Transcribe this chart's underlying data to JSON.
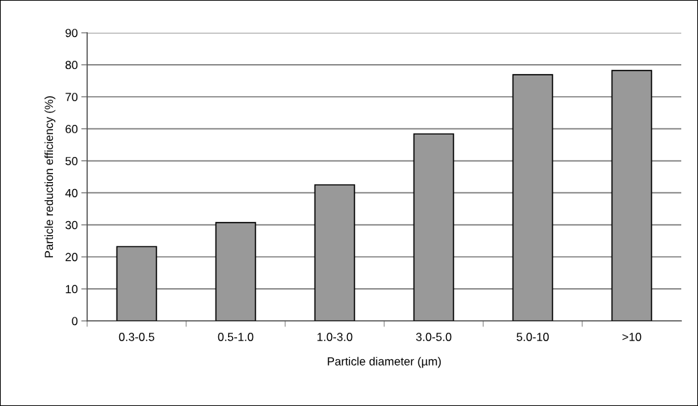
{
  "chart_data": {
    "type": "bar",
    "xlabel": "Particle diameter (µm)",
    "ylabel": "Particle reduction efficiency (%)",
    "categories": [
      "0.3-0.5",
      "0.5-1.0",
      "1.0-3.0",
      "3.0-5.0",
      "5.0-10",
      ">10"
    ],
    "values": [
      23.2,
      30.7,
      42.5,
      58.4,
      76.9,
      78.2
    ],
    "color": "#999999",
    "ylim": [
      0,
      90
    ],
    "yticks": [
      0,
      10,
      20,
      30,
      40,
      50,
      60,
      70,
      80,
      90
    ],
    "grid": "y",
    "legend": false
  }
}
